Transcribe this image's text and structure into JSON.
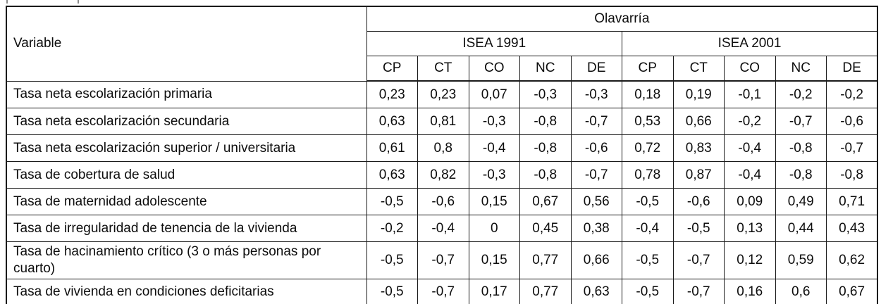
{
  "table": {
    "corner_header": "Variable",
    "top_header": "Olavarría",
    "group_headers": [
      "ISEA 1991",
      "ISEA 2001"
    ],
    "subcolumns": [
      "CP",
      "CT",
      "CO",
      "NC",
      "DE"
    ],
    "rows": [
      {
        "label": "Tasa neta escolarización primaria",
        "isea_1991": [
          "0,23",
          "0,23",
          "0,07",
          "-0,3",
          "-0,3"
        ],
        "isea_2001": [
          "0,18",
          "0,19",
          "-0,1",
          "-0,2",
          "-0,2"
        ]
      },
      {
        "label": "Tasa neta escolarización secundaria",
        "isea_1991": [
          "0,63",
          "0,81",
          "-0,3",
          "-0,8",
          "-0,7"
        ],
        "isea_2001": [
          "0,53",
          "0,66",
          "-0,2",
          "-0,7",
          "-0,6"
        ]
      },
      {
        "label": "Tasa neta escolarización superior / universitaria",
        "isea_1991": [
          "0,61",
          "0,8",
          "-0,4",
          "-0,8",
          "-0,6"
        ],
        "isea_2001": [
          "0,72",
          "0,83",
          "-0,4",
          "-0,8",
          "-0,7"
        ]
      },
      {
        "label": "Tasa de cobertura de salud",
        "isea_1991": [
          "0,63",
          "0,82",
          "-0,3",
          "-0,8",
          "-0,7"
        ],
        "isea_2001": [
          "0,78",
          "0,87",
          "-0,4",
          "-0,8",
          "-0,8"
        ]
      },
      {
        "label": "Tasa de maternidad adolescente",
        "isea_1991": [
          "-0,5",
          "-0,6",
          "0,15",
          "0,67",
          "0,56"
        ],
        "isea_2001": [
          "-0,5",
          "-0,6",
          "0,09",
          "0,49",
          "0,71"
        ]
      },
      {
        "label": "Tasa de irregularidad de tenencia de la vivienda",
        "isea_1991": [
          "-0,2",
          "-0,4",
          "0",
          "0,45",
          "0,38"
        ],
        "isea_2001": [
          "-0,4",
          "-0,5",
          "0,13",
          "0,44",
          "0,43"
        ]
      },
      {
        "label": "Tasa de hacinamiento crítico (3 o más personas por cuarto)",
        "isea_1991": [
          "-0,5",
          "-0,7",
          "0,15",
          "0,77",
          "0,66"
        ],
        "isea_2001": [
          "-0,5",
          "-0,7",
          "0,12",
          "0,59",
          "0,62"
        ]
      },
      {
        "label": "Tasa de vivienda en condiciones deficitarias",
        "isea_1991": [
          "-0,5",
          "-0,7",
          "0,17",
          "0,77",
          "0,63"
        ],
        "isea_2001": [
          "-0,5",
          "-0,7",
          "0,16",
          "0,6",
          "0,67"
        ]
      }
    ]
  },
  "colors": {
    "background": "#ffffff",
    "border": "#1a1a1a",
    "text": "#0d0d0d"
  }
}
